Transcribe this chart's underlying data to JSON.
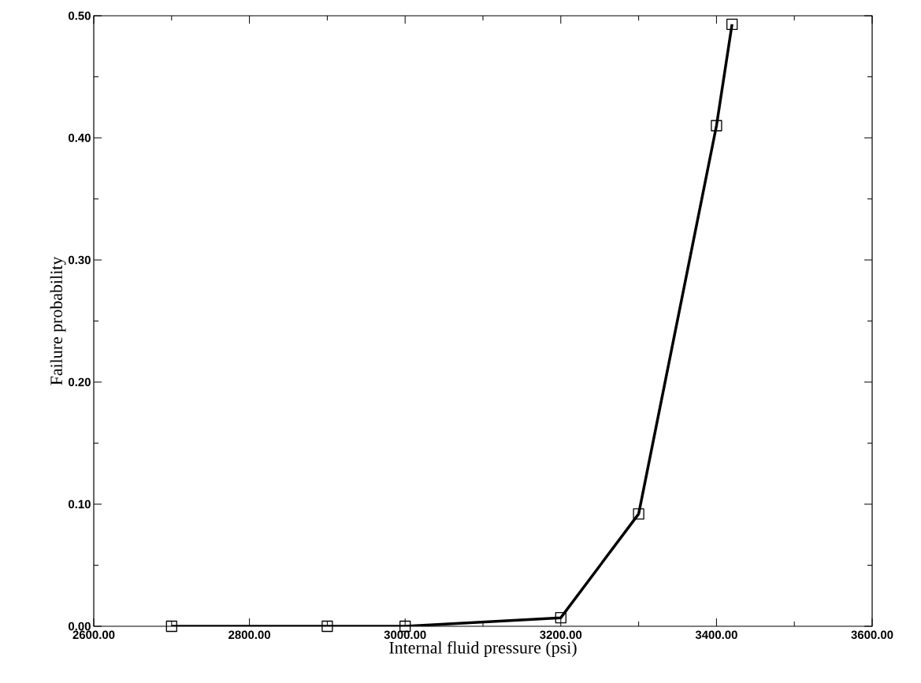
{
  "chart_data": {
    "type": "line",
    "xlabel": "Internal fluid pressure (psi)",
    "ylabel": "Failure probability",
    "x": [
      2700,
      2900,
      3000,
      3200,
      3300,
      3400,
      3420
    ],
    "series": [
      {
        "color": "#000000",
        "values": [
          0.0,
          0.0,
          0.0,
          0.007,
          0.092,
          0.41,
          0.493
        ]
      }
    ],
    "xlim": [
      2600,
      3600
    ],
    "ylim": [
      0,
      0.5
    ],
    "xticks": [
      {
        "value": 2600,
        "label": "2600.00"
      },
      {
        "value": 2800,
        "label": "2800.00"
      },
      {
        "value": 3000,
        "label": "3000.00"
      },
      {
        "value": 3200,
        "label": "3200.00"
      },
      {
        "value": 3400,
        "label": "3400.00"
      },
      {
        "value": 3600,
        "label": "3600.00"
      }
    ],
    "yticks": [
      {
        "value": 0,
        "label": "0.00"
      },
      {
        "value": 0.1,
        "label": "0.10"
      },
      {
        "value": 0.2,
        "label": "0.20"
      },
      {
        "value": 0.3,
        "label": "0.30"
      },
      {
        "value": 0.4,
        "label": "0.40"
      },
      {
        "value": 0.5,
        "label": "0.50"
      }
    ],
    "marker": "square",
    "line_style": "solid"
  }
}
